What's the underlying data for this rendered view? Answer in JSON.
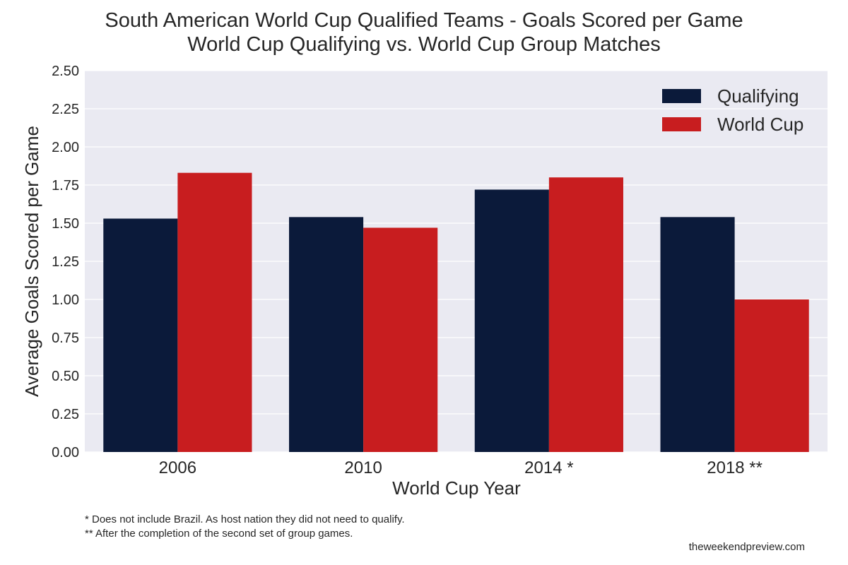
{
  "chart_data": {
    "type": "bar",
    "title": "South American World Cup Qualified Teams - Goals Scored per Game",
    "subtitle": "World Cup Qualifying vs. World Cup Group Matches",
    "xlabel": "World Cup Year",
    "ylabel": "Average Goals Scored per Game",
    "categories": [
      "2006",
      "2010",
      "2014 *",
      "2018 **"
    ],
    "series": [
      {
        "name": "Qualifying",
        "values": [
          1.53,
          1.54,
          1.72,
          1.54
        ],
        "color": "#0b1a3a"
      },
      {
        "name": "World Cup",
        "values": [
          1.83,
          1.47,
          1.8,
          1.0
        ],
        "color": "#c81d1f"
      }
    ],
    "ylim": [
      0,
      2.5
    ],
    "yticks": [
      "0.00",
      "0.25",
      "0.50",
      "0.75",
      "1.00",
      "1.25",
      "1.50",
      "1.75",
      "2.00",
      "2.25",
      "2.50"
    ],
    "grid": true,
    "legend": "top-right",
    "background_color": "#eaeaf2",
    "grid_color": "#ffffff"
  },
  "footnotes": [
    "* Does not include Brazil. As host nation they did not need to qualify.",
    "** After the completion of the second set of group games."
  ],
  "credit": "theweekendpreview.com"
}
